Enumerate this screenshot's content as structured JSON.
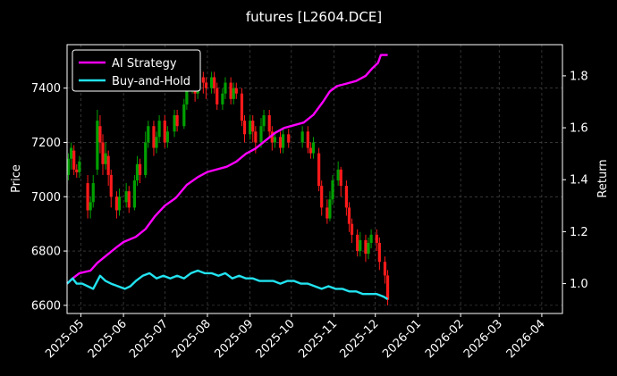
{
  "chart_data": {
    "type": "candlestick+line",
    "title": "futures [L2604.DCE]",
    "ylabel_left": "Price",
    "ylabel_right": "Return",
    "y_left_range": [
      6570,
      7560
    ],
    "y_left_ticks": [
      "6600",
      "6800",
      "7000",
      "7200",
      "7400"
    ],
    "y_right_range": [
      0.885,
      1.92
    ],
    "y_right_ticks": [
      "1.0",
      "1.2",
      "1.4",
      "1.6",
      "1.8"
    ],
    "x_range": [
      "2025-04-21",
      "2026-04-16"
    ],
    "x_ticks": [
      "2025-05",
      "2025-06",
      "2025-07",
      "2025-08",
      "2025-09",
      "2025-10",
      "2025-11",
      "2025-12",
      "2026-01",
      "2026-02",
      "2026-03",
      "2026-04"
    ],
    "x_tick_dates": [
      "2025-05-01",
      "2025-06-01",
      "2025-07-01",
      "2025-08-01",
      "2025-09-01",
      "2025-10-01",
      "2025-11-01",
      "2025-12-01",
      "2026-01-01",
      "2026-02-01",
      "2026-03-01",
      "2026-04-01"
    ],
    "grid": true,
    "legend_position": "top-left",
    "colors": {
      "up": "#00a000",
      "down": "#ff1a1a",
      "ai": "#ff00ff",
      "bh": "#22e3f0",
      "grid": "#555555"
    },
    "series": [
      {
        "name": "AI Strategy",
        "points": [
          [
            "2025-04-21",
            1.0
          ],
          [
            "2025-04-25",
            1.02
          ],
          [
            "2025-04-30",
            1.04
          ],
          [
            "2025-05-08",
            1.05
          ],
          [
            "2025-05-13",
            1.08
          ],
          [
            "2025-05-20",
            1.11
          ],
          [
            "2025-05-27",
            1.14
          ],
          [
            "2025-06-01",
            1.16
          ],
          [
            "2025-06-10",
            1.18
          ],
          [
            "2025-06-17",
            1.21
          ],
          [
            "2025-06-24",
            1.26
          ],
          [
            "2025-07-01",
            1.3
          ],
          [
            "2025-07-09",
            1.33
          ],
          [
            "2025-07-17",
            1.38
          ],
          [
            "2025-07-25",
            1.41
          ],
          [
            "2025-08-01",
            1.43
          ],
          [
            "2025-08-08",
            1.44
          ],
          [
            "2025-08-15",
            1.45
          ],
          [
            "2025-08-22",
            1.47
          ],
          [
            "2025-08-29",
            1.5
          ],
          [
            "2025-09-05",
            1.52
          ],
          [
            "2025-09-12",
            1.55
          ],
          [
            "2025-09-19",
            1.58
          ],
          [
            "2025-09-26",
            1.6
          ],
          [
            "2025-10-03",
            1.61
          ],
          [
            "2025-10-10",
            1.62
          ],
          [
            "2025-10-17",
            1.65
          ],
          [
            "2025-10-24",
            1.7
          ],
          [
            "2025-10-29",
            1.74
          ],
          [
            "2025-11-03",
            1.76
          ],
          [
            "2025-11-10",
            1.77
          ],
          [
            "2025-11-17",
            1.78
          ],
          [
            "2025-11-24",
            1.8
          ],
          [
            "2025-11-29",
            1.83
          ],
          [
            "2025-12-03",
            1.85
          ],
          [
            "2025-12-05",
            1.88
          ],
          [
            "2025-12-10",
            1.88
          ]
        ]
      },
      {
        "name": "Buy-and-Hold",
        "points": [
          [
            "2025-04-21",
            1.0
          ],
          [
            "2025-04-25",
            1.02
          ],
          [
            "2025-04-28",
            1.0
          ],
          [
            "2025-05-02",
            1.0
          ],
          [
            "2025-05-06",
            0.99
          ],
          [
            "2025-05-10",
            0.98
          ],
          [
            "2025-05-15",
            1.03
          ],
          [
            "2025-05-19",
            1.01
          ],
          [
            "2025-05-23",
            1.0
          ],
          [
            "2025-05-28",
            0.99
          ],
          [
            "2025-06-02",
            0.98
          ],
          [
            "2025-06-06",
            0.99
          ],
          [
            "2025-06-10",
            1.01
          ],
          [
            "2025-06-15",
            1.03
          ],
          [
            "2025-06-20",
            1.04
          ],
          [
            "2025-06-25",
            1.02
          ],
          [
            "2025-06-30",
            1.03
          ],
          [
            "2025-07-05",
            1.02
          ],
          [
            "2025-07-10",
            1.03
          ],
          [
            "2025-07-15",
            1.02
          ],
          [
            "2025-07-20",
            1.04
          ],
          [
            "2025-07-25",
            1.05
          ],
          [
            "2025-07-30",
            1.04
          ],
          [
            "2025-08-04",
            1.04
          ],
          [
            "2025-08-09",
            1.03
          ],
          [
            "2025-08-14",
            1.04
          ],
          [
            "2025-08-19",
            1.02
          ],
          [
            "2025-08-24",
            1.03
          ],
          [
            "2025-08-29",
            1.02
          ],
          [
            "2025-09-03",
            1.02
          ],
          [
            "2025-09-08",
            1.01
          ],
          [
            "2025-09-13",
            1.01
          ],
          [
            "2025-09-18",
            1.01
          ],
          [
            "2025-09-23",
            1.0
          ],
          [
            "2025-09-28",
            1.01
          ],
          [
            "2025-10-03",
            1.01
          ],
          [
            "2025-10-08",
            1.0
          ],
          [
            "2025-10-13",
            1.0
          ],
          [
            "2025-10-18",
            0.99
          ],
          [
            "2025-10-23",
            0.98
          ],
          [
            "2025-10-28",
            0.99
          ],
          [
            "2025-11-02",
            0.98
          ],
          [
            "2025-11-07",
            0.98
          ],
          [
            "2025-11-12",
            0.97
          ],
          [
            "2025-11-17",
            0.97
          ],
          [
            "2025-11-22",
            0.96
          ],
          [
            "2025-11-27",
            0.96
          ],
          [
            "2025-12-02",
            0.96
          ],
          [
            "2025-12-07",
            0.95
          ],
          [
            "2025-12-10",
            0.94
          ]
        ]
      }
    ],
    "candles": [
      [
        "2025-04-22",
        7080,
        7140,
        7060,
        7160
      ],
      [
        "2025-04-24",
        7140,
        7180,
        7100,
        7200
      ],
      [
        "2025-04-26",
        7170,
        7100,
        7080,
        7190
      ],
      [
        "2025-04-28",
        7100,
        7090,
        7070,
        7120
      ],
      [
        "2025-04-30",
        7090,
        7130,
        7070,
        7150
      ],
      [
        "2025-05-06",
        7050,
        6950,
        6920,
        7080
      ],
      [
        "2025-05-08",
        6950,
        6980,
        6920,
        7000
      ],
      [
        "2025-05-10",
        6980,
        7050,
        6960,
        7080
      ],
      [
        "2025-05-13",
        7100,
        7280,
        7080,
        7320
      ],
      [
        "2025-05-15",
        7260,
        7200,
        7160,
        7300
      ],
      [
        "2025-05-17",
        7200,
        7120,
        7080,
        7230
      ],
      [
        "2025-05-19",
        7120,
        7160,
        7100,
        7200
      ],
      [
        "2025-05-21",
        7150,
        7080,
        7040,
        7170
      ],
      [
        "2025-05-23",
        7080,
        7000,
        6960,
        7100
      ],
      [
        "2025-05-27",
        7000,
        6950,
        6920,
        7020
      ],
      [
        "2025-05-29",
        6950,
        7000,
        6930,
        7030
      ],
      [
        "2025-06-03",
        6980,
        7020,
        6960,
        7050
      ],
      [
        "2025-06-05",
        7020,
        6960,
        6940,
        7040
      ],
      [
        "2025-06-09",
        6960,
        7060,
        6950,
        7080
      ],
      [
        "2025-06-11",
        7060,
        7120,
        7040,
        7150
      ],
      [
        "2025-06-13",
        7120,
        7080,
        7050,
        7140
      ],
      [
        "2025-06-17",
        7080,
        7200,
        7070,
        7240
      ],
      [
        "2025-06-19",
        7200,
        7260,
        7180,
        7280
      ],
      [
        "2025-06-23",
        7260,
        7180,
        7150,
        7280
      ],
      [
        "2025-06-25",
        7180,
        7220,
        7160,
        7240
      ],
      [
        "2025-06-27",
        7220,
        7280,
        7200,
        7300
      ],
      [
        "2025-07-01",
        7280,
        7200,
        7180,
        7300
      ],
      [
        "2025-07-03",
        7200,
        7240,
        7180,
        7260
      ],
      [
        "2025-07-08",
        7240,
        7300,
        7220,
        7320
      ],
      [
        "2025-07-10",
        7300,
        7260,
        7240,
        7320
      ],
      [
        "2025-07-15",
        7260,
        7340,
        7250,
        7360
      ],
      [
        "2025-07-17",
        7340,
        7400,
        7320,
        7420
      ],
      [
        "2025-07-21",
        7400,
        7460,
        7380,
        7490
      ],
      [
        "2025-07-23",
        7450,
        7380,
        7350,
        7470
      ],
      [
        "2025-07-25",
        7380,
        7440,
        7360,
        7460
      ],
      [
        "2025-07-29",
        7440,
        7420,
        7380,
        7460
      ],
      [
        "2025-07-31",
        7420,
        7400,
        7360,
        7440
      ],
      [
        "2025-08-04",
        7400,
        7440,
        7380,
        7460
      ],
      [
        "2025-08-06",
        7440,
        7400,
        7380,
        7460
      ],
      [
        "2025-08-08",
        7400,
        7340,
        7320,
        7420
      ],
      [
        "2025-08-12",
        7340,
        7380,
        7320,
        7400
      ],
      [
        "2025-08-14",
        7380,
        7420,
        7360,
        7440
      ],
      [
        "2025-08-18",
        7420,
        7360,
        7340,
        7440
      ],
      [
        "2025-08-20",
        7360,
        7400,
        7340,
        7420
      ],
      [
        "2025-08-22",
        7400,
        7380,
        7360,
        7420
      ],
      [
        "2025-08-26",
        7380,
        7280,
        7260,
        7400
      ],
      [
        "2025-08-28",
        7280,
        7230,
        7200,
        7300
      ],
      [
        "2025-09-01",
        7230,
        7280,
        7210,
        7300
      ],
      [
        "2025-09-03",
        7280,
        7240,
        7200,
        7300
      ],
      [
        "2025-09-05",
        7240,
        7200,
        7160,
        7260
      ],
      [
        "2025-09-09",
        7200,
        7260,
        7180,
        7290
      ],
      [
        "2025-09-11",
        7260,
        7300,
        7240,
        7320
      ],
      [
        "2025-09-15",
        7300,
        7240,
        7220,
        7320
      ],
      [
        "2025-09-17",
        7240,
        7200,
        7170,
        7260
      ],
      [
        "2025-09-19",
        7200,
        7220,
        7180,
        7240
      ],
      [
        "2025-09-23",
        7220,
        7180,
        7160,
        7240
      ],
      [
        "2025-09-25",
        7180,
        7230,
        7160,
        7250
      ],
      [
        "2025-09-29",
        7230,
        7200,
        7180,
        7250
      ],
      [
        "2025-10-09",
        7200,
        7240,
        7180,
        7260
      ],
      [
        "2025-10-13",
        7240,
        7180,
        7160,
        7260
      ],
      [
        "2025-10-15",
        7180,
        7160,
        7140,
        7200
      ],
      [
        "2025-10-17",
        7160,
        7200,
        7140,
        7220
      ],
      [
        "2025-10-21",
        7160,
        7040,
        7020,
        7180
      ],
      [
        "2025-10-23",
        7040,
        6960,
        6930,
        7060
      ],
      [
        "2025-10-27",
        6960,
        6920,
        6900,
        6990
      ],
      [
        "2025-10-29",
        6920,
        6990,
        6910,
        7020
      ],
      [
        "2025-10-31",
        6990,
        7060,
        6970,
        7080
      ],
      [
        "2025-11-04",
        7060,
        7100,
        7040,
        7130
      ],
      [
        "2025-11-06",
        7100,
        7040,
        7000,
        7110
      ],
      [
        "2025-11-10",
        7040,
        6960,
        6930,
        7060
      ],
      [
        "2025-11-12",
        6960,
        6900,
        6870,
        6980
      ],
      [
        "2025-11-14",
        6900,
        6860,
        6830,
        6920
      ],
      [
        "2025-11-18",
        6860,
        6800,
        6780,
        6880
      ],
      [
        "2025-11-20",
        6800,
        6840,
        6780,
        6870
      ],
      [
        "2025-11-24",
        6840,
        6790,
        6760,
        6860
      ],
      [
        "2025-11-26",
        6790,
        6830,
        6770,
        6850
      ],
      [
        "2025-11-28",
        6830,
        6860,
        6810,
        6880
      ],
      [
        "2025-12-02",
        6860,
        6830,
        6800,
        6880
      ],
      [
        "2025-12-04",
        6830,
        6760,
        6730,
        6850
      ],
      [
        "2025-12-08",
        6760,
        6710,
        6680,
        6780
      ],
      [
        "2025-12-10",
        6710,
        6620,
        6600,
        6730
      ]
    ]
  }
}
